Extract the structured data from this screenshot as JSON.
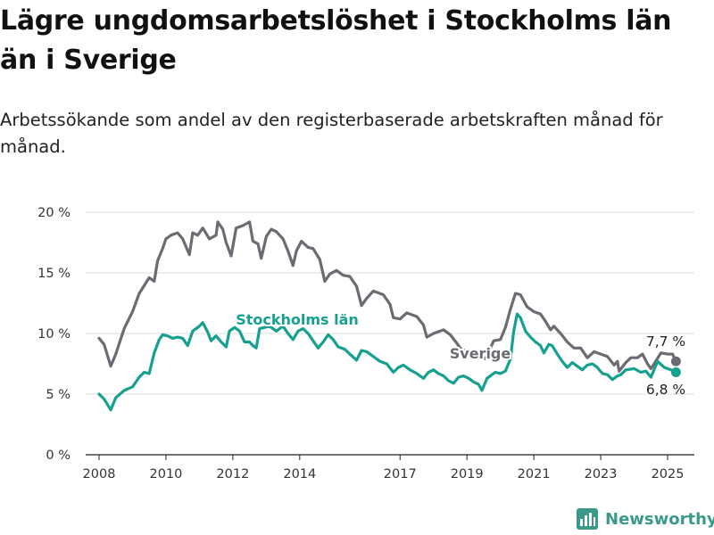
{
  "title": "Lägre ungdomsarbetslöshet i Stockholms län än i Sverige",
  "subtitle": "Arbetssökande som andel av den registerbaserade arbetskraften månad för månad.",
  "brand": {
    "name": "Newsworthy"
  },
  "colors": {
    "sverige": "#6b6b73",
    "stockholm": "#15a08f",
    "grid": "#dddddd",
    "brand": "#3a9a8a"
  },
  "chart_data": {
    "type": "line",
    "ylim": [
      0,
      20
    ],
    "yticks": [
      0,
      5,
      10,
      15,
      20
    ],
    "ytick_labels": [
      "0 %",
      "5 %",
      "10 %",
      "15 %",
      "20 %"
    ],
    "xlim": [
      2007.6,
      2025.8
    ],
    "xticks": [
      2008,
      2010,
      2012,
      2014,
      2017,
      2019,
      2021,
      2023,
      2025
    ],
    "xtick_labels": [
      "2008",
      "2010",
      "2012",
      "2014",
      "2017",
      "2019",
      "2021",
      "2023",
      "2025"
    ],
    "grid": "horizontal",
    "series": [
      {
        "name": "Sverige",
        "end_label": "7,7 %",
        "points": [
          [
            2008.0,
            9.6
          ],
          [
            2008.15,
            9.1
          ],
          [
            2008.35,
            7.3
          ],
          [
            2008.5,
            8.3
          ],
          [
            2008.75,
            10.4
          ],
          [
            2009.0,
            11.8
          ],
          [
            2009.2,
            13.3
          ],
          [
            2009.5,
            14.6
          ],
          [
            2009.65,
            14.3
          ],
          [
            2009.75,
            16.0
          ],
          [
            2009.9,
            17.0
          ],
          [
            2010.0,
            17.8
          ],
          [
            2010.15,
            18.1
          ],
          [
            2010.35,
            18.3
          ],
          [
            2010.5,
            17.8
          ],
          [
            2010.7,
            16.5
          ],
          [
            2010.8,
            18.3
          ],
          [
            2010.95,
            18.1
          ],
          [
            2011.1,
            18.7
          ],
          [
            2011.3,
            17.8
          ],
          [
            2011.5,
            18.1
          ],
          [
            2011.55,
            19.2
          ],
          [
            2011.7,
            18.6
          ],
          [
            2011.8,
            17.5
          ],
          [
            2011.95,
            16.4
          ],
          [
            2012.1,
            18.7
          ],
          [
            2012.3,
            18.9
          ],
          [
            2012.5,
            19.2
          ],
          [
            2012.6,
            17.6
          ],
          [
            2012.75,
            17.4
          ],
          [
            2012.85,
            16.2
          ],
          [
            2013.0,
            18.0
          ],
          [
            2013.15,
            18.6
          ],
          [
            2013.3,
            18.4
          ],
          [
            2013.5,
            17.8
          ],
          [
            2013.65,
            16.8
          ],
          [
            2013.8,
            15.6
          ],
          [
            2013.9,
            16.8
          ],
          [
            2014.05,
            17.6
          ],
          [
            2014.25,
            17.1
          ],
          [
            2014.4,
            17.0
          ],
          [
            2014.6,
            16.1
          ],
          [
            2014.75,
            14.3
          ],
          [
            2014.9,
            14.9
          ],
          [
            2015.1,
            15.2
          ],
          [
            2015.3,
            14.8
          ],
          [
            2015.5,
            14.7
          ],
          [
            2015.7,
            13.9
          ],
          [
            2015.85,
            12.3
          ],
          [
            2016.0,
            12.9
          ],
          [
            2016.2,
            13.5
          ],
          [
            2016.5,
            13.2
          ],
          [
            2016.7,
            12.4
          ],
          [
            2016.8,
            11.3
          ],
          [
            2017.0,
            11.2
          ],
          [
            2017.2,
            11.7
          ],
          [
            2017.5,
            11.4
          ],
          [
            2017.7,
            10.7
          ],
          [
            2017.8,
            9.7
          ],
          [
            2018.0,
            10.0
          ],
          [
            2018.3,
            10.3
          ],
          [
            2018.5,
            9.9
          ],
          [
            2018.7,
            9.2
          ],
          [
            2018.85,
            8.6
          ],
          [
            2019.0,
            8.6
          ],
          [
            2019.15,
            8.2
          ],
          [
            2019.4,
            8.0
          ],
          [
            2019.55,
            7.9
          ],
          [
            2019.8,
            9.4
          ],
          [
            2020.0,
            9.5
          ],
          [
            2020.15,
            10.5
          ],
          [
            2020.3,
            12.0
          ],
          [
            2020.45,
            13.3
          ],
          [
            2020.6,
            13.2
          ],
          [
            2020.8,
            12.2
          ],
          [
            2021.0,
            11.8
          ],
          [
            2021.2,
            11.6
          ],
          [
            2021.35,
            11.0
          ],
          [
            2021.5,
            10.3
          ],
          [
            2021.6,
            10.6
          ],
          [
            2021.8,
            10.0
          ],
          [
            2022.0,
            9.3
          ],
          [
            2022.2,
            8.8
          ],
          [
            2022.4,
            8.8
          ],
          [
            2022.6,
            8.0
          ],
          [
            2022.8,
            8.5
          ],
          [
            2023.0,
            8.3
          ],
          [
            2023.2,
            8.1
          ],
          [
            2023.4,
            7.4
          ],
          [
            2023.5,
            7.7
          ],
          [
            2023.55,
            6.9
          ],
          [
            2023.75,
            7.6
          ],
          [
            2023.9,
            8.0
          ],
          [
            2024.1,
            8.0
          ],
          [
            2024.25,
            8.3
          ],
          [
            2024.4,
            7.5
          ],
          [
            2024.5,
            7.1
          ],
          [
            2024.6,
            7.5
          ],
          [
            2024.8,
            8.4
          ],
          [
            2025.0,
            8.3
          ],
          [
            2025.15,
            8.3
          ],
          [
            2025.25,
            7.7
          ]
        ]
      },
      {
        "name": "Stockholms län",
        "end_label": "6,8 %",
        "points": [
          [
            2008.0,
            5.0
          ],
          [
            2008.15,
            4.6
          ],
          [
            2008.35,
            3.7
          ],
          [
            2008.5,
            4.7
          ],
          [
            2008.75,
            5.3
          ],
          [
            2009.0,
            5.6
          ],
          [
            2009.2,
            6.4
          ],
          [
            2009.35,
            6.8
          ],
          [
            2009.5,
            6.7
          ],
          [
            2009.65,
            8.4
          ],
          [
            2009.8,
            9.5
          ],
          [
            2009.9,
            9.9
          ],
          [
            2010.05,
            9.8
          ],
          [
            2010.2,
            9.6
          ],
          [
            2010.35,
            9.7
          ],
          [
            2010.5,
            9.6
          ],
          [
            2010.65,
            9.0
          ],
          [
            2010.8,
            10.2
          ],
          [
            2011.0,
            10.6
          ],
          [
            2011.1,
            10.9
          ],
          [
            2011.25,
            10.1
          ],
          [
            2011.35,
            9.4
          ],
          [
            2011.5,
            9.8
          ],
          [
            2011.65,
            9.3
          ],
          [
            2011.8,
            8.9
          ],
          [
            2011.9,
            10.2
          ],
          [
            2012.05,
            10.5
          ],
          [
            2012.2,
            10.2
          ],
          [
            2012.35,
            9.3
          ],
          [
            2012.5,
            9.3
          ],
          [
            2012.6,
            9.0
          ],
          [
            2012.7,
            8.8
          ],
          [
            2012.8,
            10.4
          ],
          [
            2012.95,
            10.5
          ],
          [
            2013.1,
            10.6
          ],
          [
            2013.3,
            10.2
          ],
          [
            2013.5,
            10.6
          ],
          [
            2013.65,
            10.0
          ],
          [
            2013.8,
            9.5
          ],
          [
            2013.95,
            10.2
          ],
          [
            2014.1,
            10.4
          ],
          [
            2014.25,
            10.0
          ],
          [
            2014.4,
            9.4
          ],
          [
            2014.55,
            8.8
          ],
          [
            2014.7,
            9.3
          ],
          [
            2014.85,
            9.9
          ],
          [
            2015.0,
            9.5
          ],
          [
            2015.15,
            8.9
          ],
          [
            2015.35,
            8.7
          ],
          [
            2015.5,
            8.3
          ],
          [
            2015.7,
            7.8
          ],
          [
            2015.85,
            8.6
          ],
          [
            2016.0,
            8.5
          ],
          [
            2016.2,
            8.1
          ],
          [
            2016.4,
            7.7
          ],
          [
            2016.6,
            7.5
          ],
          [
            2016.8,
            6.8
          ],
          [
            2016.95,
            7.2
          ],
          [
            2017.1,
            7.4
          ],
          [
            2017.3,
            7.0
          ],
          [
            2017.5,
            6.7
          ],
          [
            2017.7,
            6.3
          ],
          [
            2017.85,
            6.8
          ],
          [
            2018.0,
            7.0
          ],
          [
            2018.15,
            6.7
          ],
          [
            2018.3,
            6.5
          ],
          [
            2018.45,
            6.1
          ],
          [
            2018.6,
            5.9
          ],
          [
            2018.75,
            6.4
          ],
          [
            2018.9,
            6.5
          ],
          [
            2019.05,
            6.3
          ],
          [
            2019.2,
            6.0
          ],
          [
            2019.35,
            5.8
          ],
          [
            2019.45,
            5.3
          ],
          [
            2019.6,
            6.3
          ],
          [
            2019.7,
            6.5
          ],
          [
            2019.85,
            6.8
          ],
          [
            2020.0,
            6.7
          ],
          [
            2020.15,
            6.9
          ],
          [
            2020.3,
            7.9
          ],
          [
            2020.4,
            10.2
          ],
          [
            2020.5,
            11.6
          ],
          [
            2020.6,
            11.3
          ],
          [
            2020.75,
            10.2
          ],
          [
            2020.9,
            9.7
          ],
          [
            2021.05,
            9.3
          ],
          [
            2021.2,
            9.0
          ],
          [
            2021.3,
            8.4
          ],
          [
            2021.45,
            9.1
          ],
          [
            2021.55,
            9.0
          ],
          [
            2021.7,
            8.3
          ],
          [
            2021.85,
            7.7
          ],
          [
            2022.0,
            7.2
          ],
          [
            2022.15,
            7.6
          ],
          [
            2022.3,
            7.3
          ],
          [
            2022.45,
            7.0
          ],
          [
            2022.6,
            7.4
          ],
          [
            2022.75,
            7.5
          ],
          [
            2022.9,
            7.2
          ],
          [
            2023.05,
            6.7
          ],
          [
            2023.2,
            6.6
          ],
          [
            2023.35,
            6.2
          ],
          [
            2023.5,
            6.5
          ],
          [
            2023.6,
            6.6
          ],
          [
            2023.75,
            7.0
          ],
          [
            2024.0,
            7.1
          ],
          [
            2024.2,
            6.8
          ],
          [
            2024.35,
            6.9
          ],
          [
            2024.5,
            6.4
          ],
          [
            2024.7,
            7.7
          ],
          [
            2024.9,
            7.2
          ],
          [
            2025.1,
            7.0
          ],
          [
            2025.25,
            6.8
          ]
        ]
      }
    ]
  }
}
